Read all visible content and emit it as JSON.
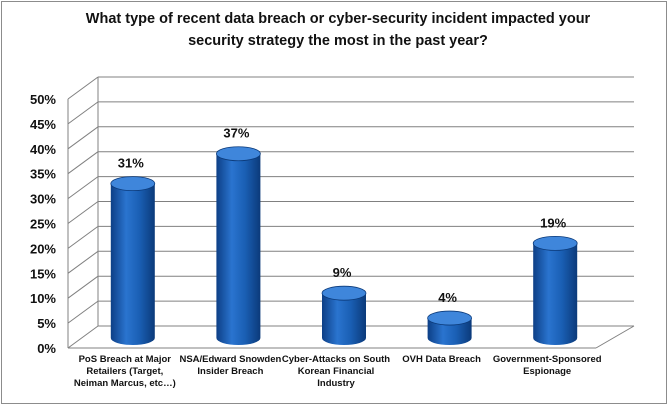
{
  "chart_data": {
    "type": "bar",
    "title_lines": [
      "What type of recent data breach or cyber-security  incident impacted your",
      "security strategy the most in the past year?"
    ],
    "categories": [
      [
        "PoS Breach at Major",
        "Retailers (Target,",
        "Neiman Marcus,  etc…)"
      ],
      [
        "NSA/Edward Snowden",
        "Insider Breach"
      ],
      [
        "Cyber-Attacks on South",
        "Korean Financial",
        "Industry"
      ],
      [
        "OVH Data Breach"
      ],
      [
        "Government-Sponsored",
        "Espionage"
      ]
    ],
    "values": [
      31,
      37,
      9,
      4,
      19
    ],
    "data_labels": [
      "31%",
      "37%",
      "9%",
      "4%",
      "19%"
    ],
    "yticks": [
      "0%",
      "5%",
      "10%",
      "15%",
      "20%",
      "25%",
      "30%",
      "35%",
      "40%",
      "45%",
      "50%"
    ],
    "ylim": [
      0,
      50
    ],
    "grid": true,
    "colors": {
      "bar": "#1a5fb4",
      "bar_dark": "#0b3a7a",
      "bar_light": "#3f86db",
      "grid": "#808080"
    }
  }
}
